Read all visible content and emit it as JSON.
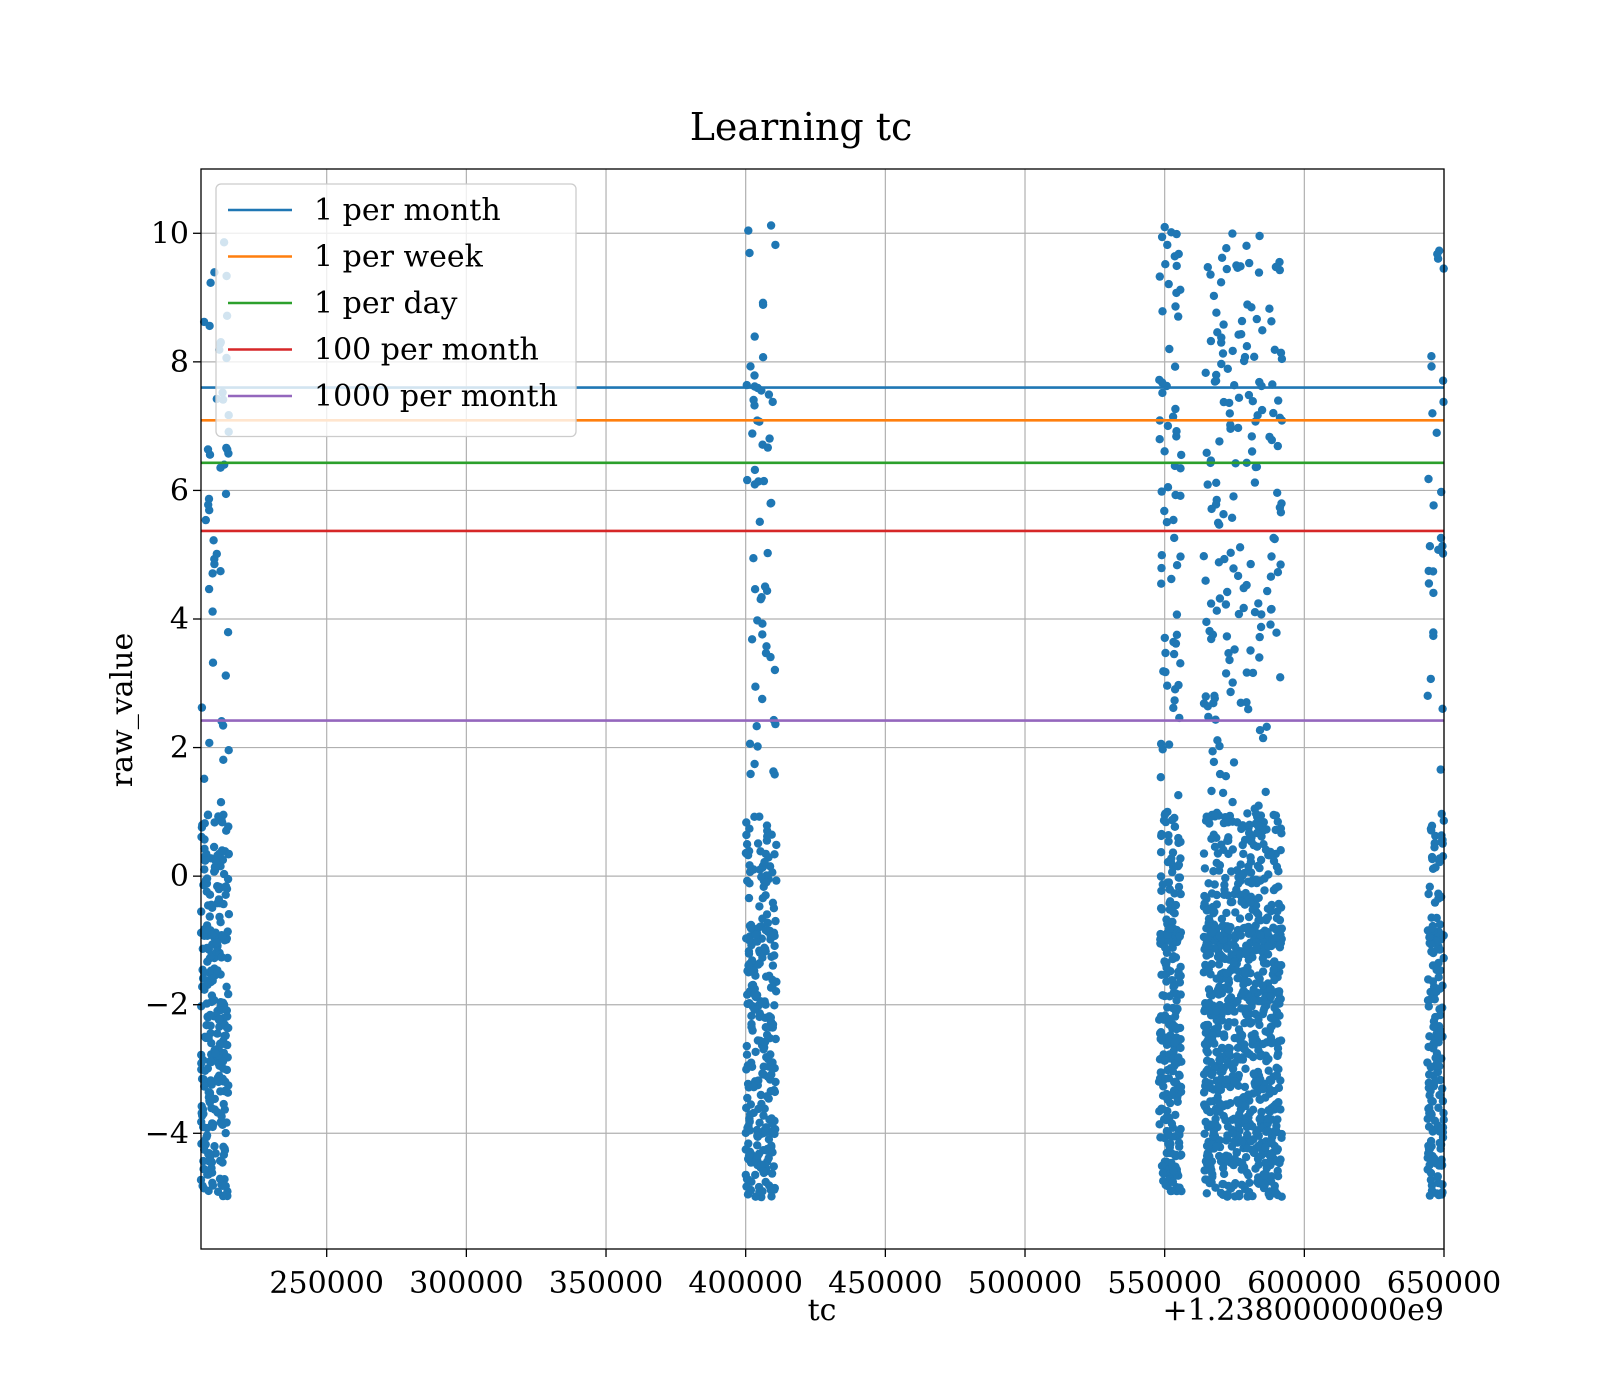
{
  "chart_data": {
    "type": "scatter",
    "title": "Learning tc",
    "xlabel": "tc",
    "ylabel": "raw_value",
    "x_offset_label": "+1.2380000000e9",
    "x_offset": 1238000000,
    "xlim": [
      1238205000,
      1238650000
    ],
    "ylim": [
      -5.8,
      11.0
    ],
    "xticks": [
      250000,
      300000,
      350000,
      400000,
      450000,
      500000,
      550000,
      600000,
      650000
    ],
    "xtick_labels": [
      "250000",
      "300000",
      "350000",
      "400000",
      "450000",
      "500000",
      "550000",
      "600000",
      "650000"
    ],
    "yticks": [
      -4,
      -2,
      0,
      2,
      4,
      6,
      8,
      10
    ],
    "ytick_labels": [
      "−4",
      "−2",
      "0",
      "2",
      "4",
      "6",
      "8",
      "10"
    ],
    "grid": true,
    "legend_position": "top-left",
    "scatter_color": "#1f77b4",
    "scatter_clusters": [
      {
        "x_start": 1238205000,
        "x_end": 1238215000,
        "y_min": -5.0,
        "y_max": 9.9,
        "count": 320
      },
      {
        "x_start": 1238400000,
        "x_end": 1238411000,
        "y_min": -5.0,
        "y_max": 10.2,
        "count": 330
      },
      {
        "x_start": 1238548000,
        "x_end": 1238556000,
        "y_min": -4.9,
        "y_max": 10.1,
        "count": 320
      },
      {
        "x_start": 1238564000,
        "x_end": 1238592000,
        "y_min": -5.0,
        "y_max": 10.0,
        "count": 1050
      },
      {
        "x_start": 1238644000,
        "x_end": 1238650000,
        "y_min": -5.0,
        "y_max": 9.8,
        "count": 200
      }
    ],
    "series": [
      {
        "name": "1 per month",
        "y": 7.6,
        "color": "#1f77b4"
      },
      {
        "name": "1 per week",
        "y": 7.09,
        "color": "#ff7f0e"
      },
      {
        "name": "1 per day",
        "y": 6.43,
        "color": "#2ca02c"
      },
      {
        "name": "100 per month",
        "y": 5.37,
        "color": "#d62728"
      },
      {
        "name": "1000 per month",
        "y": 2.42,
        "color": "#9467bd"
      }
    ]
  }
}
